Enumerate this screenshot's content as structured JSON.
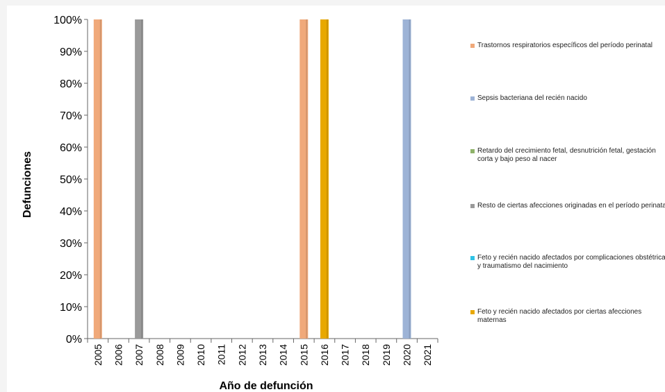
{
  "chart_data": {
    "type": "bar",
    "stacked": true,
    "percent": true,
    "title": "",
    "xlabel": "Año de defunción",
    "ylabel": "Defunciones",
    "ylim": [
      0,
      1
    ],
    "yticks": [
      "0%",
      "10%",
      "20%",
      "30%",
      "40%",
      "50%",
      "60%",
      "70%",
      "80%",
      "90%",
      "100%"
    ],
    "categories": [
      "2005",
      "2006",
      "2007",
      "2008",
      "2009",
      "2010",
      "2011",
      "2012",
      "2013",
      "2014",
      "2015",
      "2016",
      "2017",
      "2018",
      "2019",
      "2020",
      "2021"
    ],
    "grid": false,
    "legend_position": "right",
    "series": [
      {
        "name": "Trastornos respiratorios específicos del período perinatal",
        "color": "#f0a97a",
        "values": [
          1,
          0,
          0,
          0,
          0,
          0,
          0,
          0,
          0,
          0,
          1,
          0,
          0,
          0,
          0,
          0,
          0
        ]
      },
      {
        "name": "Sepsis bacteriana del recién nacido",
        "color": "#9db3d6",
        "values": [
          0,
          0,
          0,
          0,
          0,
          0,
          0,
          0,
          0,
          0,
          0,
          0,
          0,
          0,
          0,
          1,
          0
        ]
      },
      {
        "name": "Retardo del crecimiento fetal, desnutrición fetal, gestación corta y bajo peso al nacer",
        "color": "#8fb36a",
        "values": [
          0,
          0,
          0,
          0,
          0,
          0,
          0,
          0,
          0,
          0,
          0,
          0,
          0,
          0,
          0,
          0,
          0
        ]
      },
      {
        "name": "Resto de ciertas afecciones originadas en el período perinatal",
        "color": "#9a9a9a",
        "values": [
          0,
          0,
          1,
          0,
          0,
          0,
          0,
          0,
          0,
          0,
          0,
          0,
          0,
          0,
          0,
          0,
          0
        ]
      },
      {
        "name": "Feto y recién nacido afectados por complicaciones obstétricas y traumatismo del nacimiento",
        "color": "#2fc3e6",
        "values": [
          0,
          0,
          0,
          0,
          0,
          0,
          0,
          0,
          0,
          0,
          0,
          0,
          0,
          0,
          0,
          0,
          0
        ]
      },
      {
        "name": "Feto y recién nacido afectados por ciertas afecciones maternas",
        "color": "#e8a800",
        "values": [
          0,
          0,
          0,
          0,
          0,
          0,
          0,
          0,
          0,
          0,
          0,
          1,
          0,
          0,
          0,
          0,
          0
        ]
      }
    ]
  }
}
